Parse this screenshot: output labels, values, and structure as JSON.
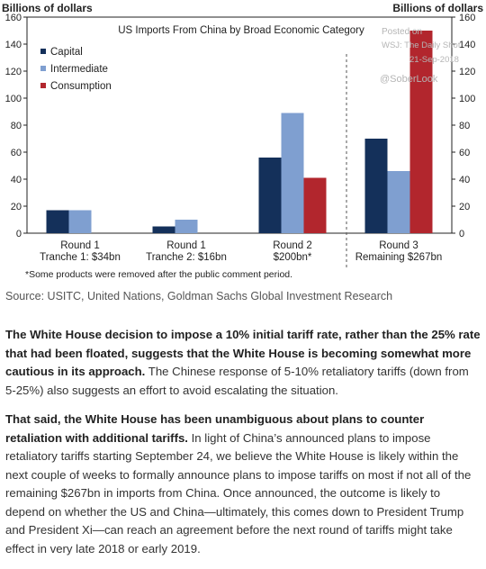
{
  "chart_data": {
    "type": "bar",
    "title": "US Imports From China by Broad Economic Category",
    "ylabel_left": "Billions of dollars",
    "ylabel_right": "Billions of dollars",
    "ylim": [
      0,
      160
    ],
    "yticks": [
      "0",
      "20",
      "40",
      "60",
      "80",
      "100",
      "120",
      "140",
      "160"
    ],
    "grid": false,
    "legend_position": "top-left",
    "categories": [
      [
        "Round 1",
        "Tranche 1: $34bn"
      ],
      [
        "Round 1",
        "Tranche 2: $16bn"
      ],
      [
        "Round 2",
        "$200bn*"
      ],
      [
        "Round 3",
        "Remaining $267bn"
      ]
    ],
    "series": [
      {
        "name": "Capital",
        "color": "#14305a",
        "values": [
          17,
          5,
          56,
          70
        ]
      },
      {
        "name": "Intermediate",
        "color": "#7f9fd0",
        "values": [
          17,
          10,
          89,
          46
        ]
      },
      {
        "name": "Consumption",
        "color": "#b2262d",
        "values": [
          0,
          0,
          41,
          150
        ]
      }
    ],
    "footnote": "*Some products were removed after the public comment period.",
    "watermark": [
      "Posted on",
      "WSJ: The Daily Shot",
      "21-Sep-2018",
      "@SoberLook"
    ]
  },
  "source": "Source: USITC, United Nations, Goldman Sachs Global Investment Research",
  "paragraphs": [
    {
      "bold": "The White House decision to impose a 10% initial tariff rate, rather than the 25% rate that had been floated, suggests that the White House is becoming somewhat more cautious in its approach.",
      "text": " The Chinese response of 5-10% retaliatory tariffs (down from 5-25%) also suggests an effort to avoid escalating the situation."
    },
    {
      "bold": "That said, the White House has been unambiguous about plans to counter retaliation with additional tariffs.",
      "text": " In light of China’s announced plans to impose retaliatory tariffs starting September 24, we believe the White House is likely within the next couple of weeks to formally announce plans to impose tariffs on most if not all of the remaining $267bn in imports from China. Once announced, the outcome is likely to depend on whether the US and China—ultimately, this comes down to President Trump and President Xi—can reach an agreement before the next round of tariffs might take effect in very late 2018 or early 2019."
    }
  ]
}
